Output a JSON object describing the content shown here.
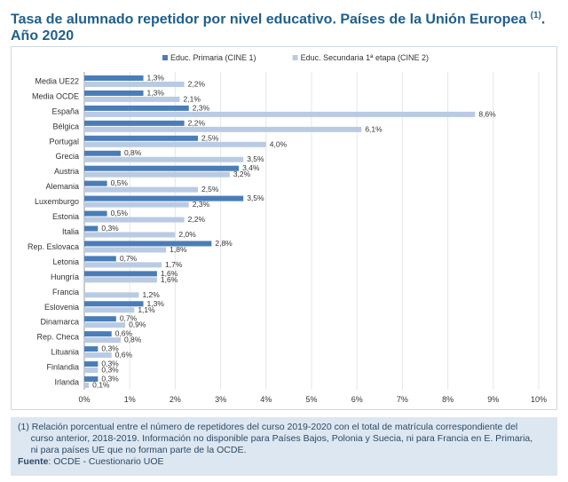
{
  "title": {
    "main": "Tasa de alumnado repetidor por nivel educativo. Países de la Unión Europea",
    "sup": "(1)",
    "after_sup": ".",
    "line2": "Año 2020"
  },
  "chart_data": {
    "type": "bar",
    "orientation": "horizontal",
    "categories": [
      "Media UE22",
      "Media OCDE",
      "España",
      "Bélgica",
      "Portugal",
      "Grecia",
      "Austria",
      "Alemania",
      "Luxemburgo",
      "Estonia",
      "Italia",
      "Rep. Eslovaca",
      "Letonia",
      "Hungría",
      "Francia",
      "Eslovenia",
      "Dinamarca",
      "Rep. Checa",
      "Lituania",
      "Finlandia",
      "Irlanda"
    ],
    "series": [
      {
        "name": "Educ. Primaria (CINE 1)",
        "color": "#4a7db8",
        "values": [
          1.3,
          1.3,
          2.3,
          2.2,
          2.5,
          0.8,
          3.4,
          0.5,
          3.5,
          0.5,
          0.3,
          2.8,
          0.7,
          1.6,
          null,
          1.3,
          0.7,
          0.6,
          0.3,
          0.3,
          0.3
        ],
        "labels": [
          "1,3%",
          "1,3%",
          "2,3%",
          "2,2%",
          "2,5%",
          "0,8%",
          "3,4%",
          "0,5%",
          "3,5%",
          "0,5%",
          "0,3%",
          "2,8%",
          "0,7%",
          "1,6%",
          "",
          "1,3%",
          "0,7%",
          "0,6%",
          "0,3%",
          "0,3%",
          "0,3%"
        ]
      },
      {
        "name": "Educ. Secundaria 1ª etapa (CINE 2)",
        "color": "#b9cbe3",
        "values": [
          2.2,
          2.1,
          8.6,
          6.1,
          4.0,
          3.5,
          3.2,
          2.5,
          2.3,
          2.2,
          2.0,
          1.8,
          1.7,
          1.6,
          1.2,
          1.1,
          0.9,
          0.8,
          0.6,
          0.3,
          0.1
        ],
        "labels": [
          "2,2%",
          "2,1%",
          "8,6%",
          "6,1%",
          "4,0%",
          "3,5%",
          "3,2%",
          "2,5%",
          "2,3%",
          "2,2%",
          "2,0%",
          "1,8%",
          "1,7%",
          "1,6%",
          "1,2%",
          "1,1%",
          "0,9%",
          "0,8%",
          "0,6%",
          "0,3%",
          "0,1%"
        ]
      }
    ],
    "xlim": [
      0,
      10
    ],
    "xticks": [
      "0%",
      "1%",
      "2%",
      "3%",
      "4%",
      "5%",
      "6%",
      "7%",
      "8%",
      "9%",
      "10%"
    ],
    "grid": true,
    "legend_position": "top"
  },
  "notes": {
    "line1": "(1) Relación porcentual entre el número de repetidores del curso 2019-2020 con el total de matrícula correspondiente del",
    "line2": "     curso anterior, 2018-2019. Información no disponible para Países Bajos, Polonia y Suecia, ni para Francia en E. Primaria,",
    "line3": "     ni para países UE que no forman parte de la OCDE.",
    "source_label": "Fuente",
    "source_text": ": OCDE - Cuestionario UOE"
  }
}
